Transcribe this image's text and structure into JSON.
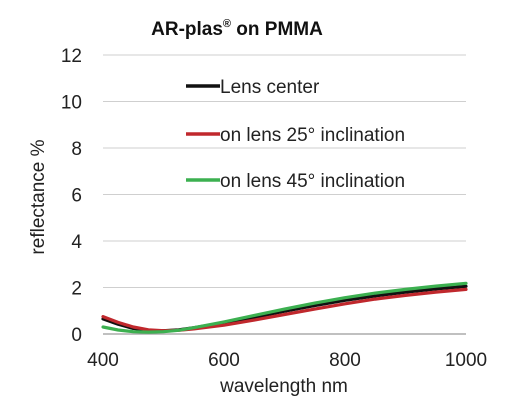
{
  "chart_data": {
    "type": "line",
    "title_main": "AR-plas",
    "title_mark": "®",
    "title_rest": " on PMMA",
    "xlabel": "wavelength nm",
    "ylabel": "reflectance %",
    "xlim": [
      400,
      1000
    ],
    "ylim": [
      0,
      12
    ],
    "xticks": [
      "400",
      "600",
      "800",
      "1000"
    ],
    "yticks": [
      "0",
      "2",
      "4",
      "6",
      "8",
      "10",
      "12"
    ],
    "grid": "horizontal",
    "legend_position": "inside-top-right",
    "series": [
      {
        "name": "Lens center",
        "color": "#111111",
        "x": [
          400,
          425,
          450,
          475,
          500,
          525,
          550,
          600,
          650,
          700,
          750,
          800,
          850,
          900,
          950,
          1000
        ],
        "y": [
          0.65,
          0.42,
          0.24,
          0.15,
          0.14,
          0.18,
          0.27,
          0.48,
          0.72,
          0.98,
          1.22,
          1.45,
          1.64,
          1.8,
          1.94,
          2.05
        ]
      },
      {
        "name": "on lens 25° inclination",
        "color": "#c0282d",
        "x": [
          400,
          425,
          450,
          475,
          500,
          525,
          550,
          600,
          650,
          700,
          750,
          800,
          850,
          900,
          950,
          1000
        ],
        "y": [
          0.75,
          0.5,
          0.3,
          0.18,
          0.14,
          0.16,
          0.22,
          0.38,
          0.6,
          0.84,
          1.07,
          1.3,
          1.5,
          1.66,
          1.8,
          1.92
        ]
      },
      {
        "name": "on lens 45° inclination",
        "color": "#3cb050",
        "x": [
          400,
          425,
          450,
          475,
          500,
          525,
          550,
          600,
          650,
          700,
          750,
          800,
          850,
          900,
          950,
          1000
        ],
        "y": [
          0.3,
          0.17,
          0.1,
          0.08,
          0.1,
          0.16,
          0.27,
          0.52,
          0.8,
          1.07,
          1.33,
          1.56,
          1.76,
          1.92,
          2.06,
          2.18
        ]
      }
    ]
  }
}
